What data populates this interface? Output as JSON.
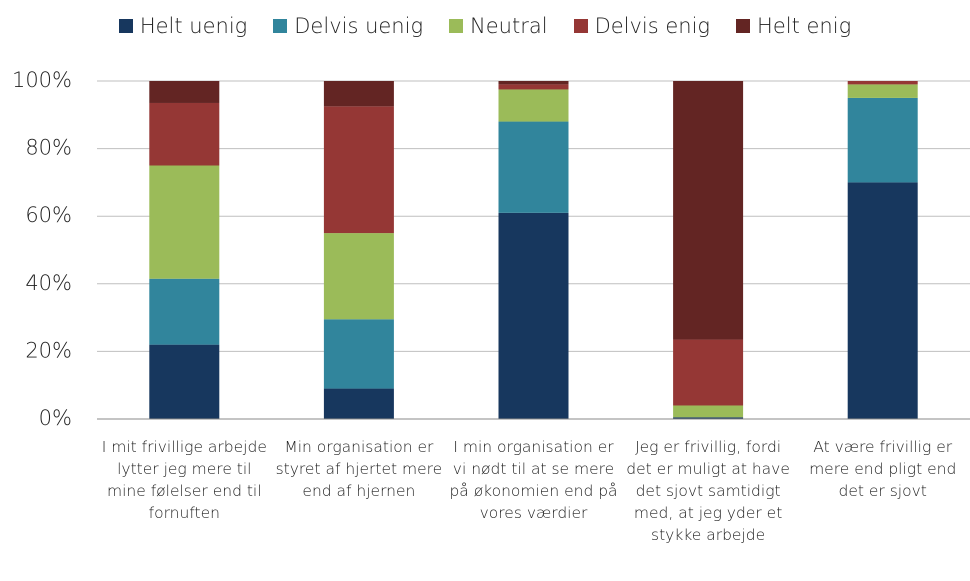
{
  "chart_data": {
    "type": "stacked_bar_percent",
    "categories": [
      "I mit frivillige arbejde lytter jeg mere til mine følelser end til fornuften",
      "Min organisation er styret af hjertet mere end af hjernen",
      "I min organisation er vi nødt til at se mere på økonomien end på vores værdier",
      "Jeg er frivillig, fordi det er muligt at have det sjovt samtidigt med, at jeg yder et stykke arbejde",
      "At være frivillig er mere end pligt end det er sjovt"
    ],
    "series": [
      {
        "name": "Helt uenig",
        "color": "#17375e",
        "values": [
          22,
          9,
          61,
          0.5,
          70
        ]
      },
      {
        "name": "Delvis uenig",
        "color": "#31859c",
        "values": [
          19.5,
          20.5,
          27,
          0,
          25
        ]
      },
      {
        "name": "Neutral",
        "color": "#9bbb59",
        "values": [
          33.5,
          25.5,
          9.5,
          3.5,
          4
        ]
      },
      {
        "name": "Delvis enig",
        "color": "#953735",
        "values": [
          18.5,
          37.5,
          1.5,
          19.5,
          1
        ]
      },
      {
        "name": "Helt enig",
        "color": "#632523",
        "values": [
          6.5,
          7.5,
          1,
          76.5,
          0
        ]
      }
    ],
    "ylim": [
      0,
      100
    ],
    "yticks": [
      {
        "value": 0,
        "label": "0%"
      },
      {
        "value": 20,
        "label": "20%"
      },
      {
        "value": 40,
        "label": "40%"
      },
      {
        "value": 60,
        "label": "60%"
      },
      {
        "value": 80,
        "label": "80%"
      },
      {
        "value": 100,
        "label": "100%"
      }
    ],
    "grid": true,
    "legend": "top"
  }
}
